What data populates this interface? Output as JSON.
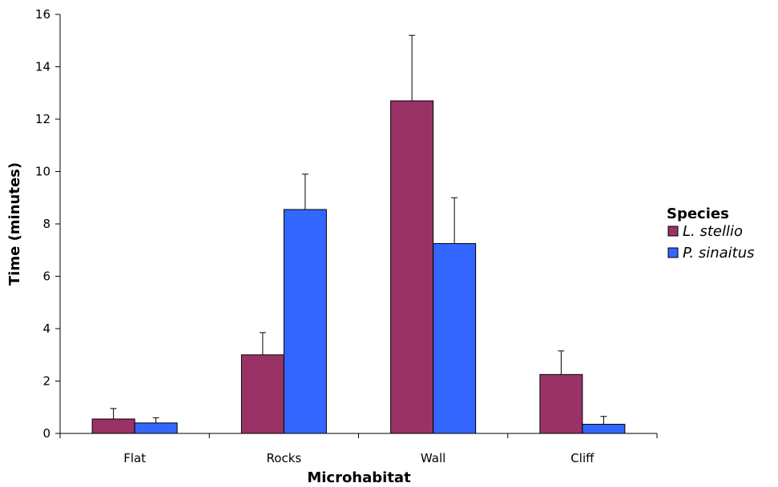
{
  "chart_data": {
    "type": "bar",
    "title": "",
    "xlabel": "Microhabitat",
    "ylabel": "Time (minutes)",
    "categories": [
      "Flat",
      "Rocks",
      "Wall",
      "Cliff"
    ],
    "ylim": [
      0,
      16
    ],
    "yticks": [
      "0",
      "2",
      "4",
      "6",
      "8",
      "10",
      "12",
      "14",
      "16"
    ],
    "grid": false,
    "legend": {
      "title": "Species",
      "position": "right"
    },
    "series": [
      {
        "name": "L. stellio",
        "color": "#993366",
        "values": [
          0.55,
          3.0,
          12.7,
          2.25
        ],
        "errors": [
          0.4,
          0.85,
          2.5,
          0.9
        ]
      },
      {
        "name": "P. sinaitus",
        "color": "#3366ff",
        "values": [
          0.4,
          8.55,
          7.25,
          0.35
        ],
        "errors": [
          0.2,
          1.35,
          1.75,
          0.3
        ]
      }
    ]
  }
}
